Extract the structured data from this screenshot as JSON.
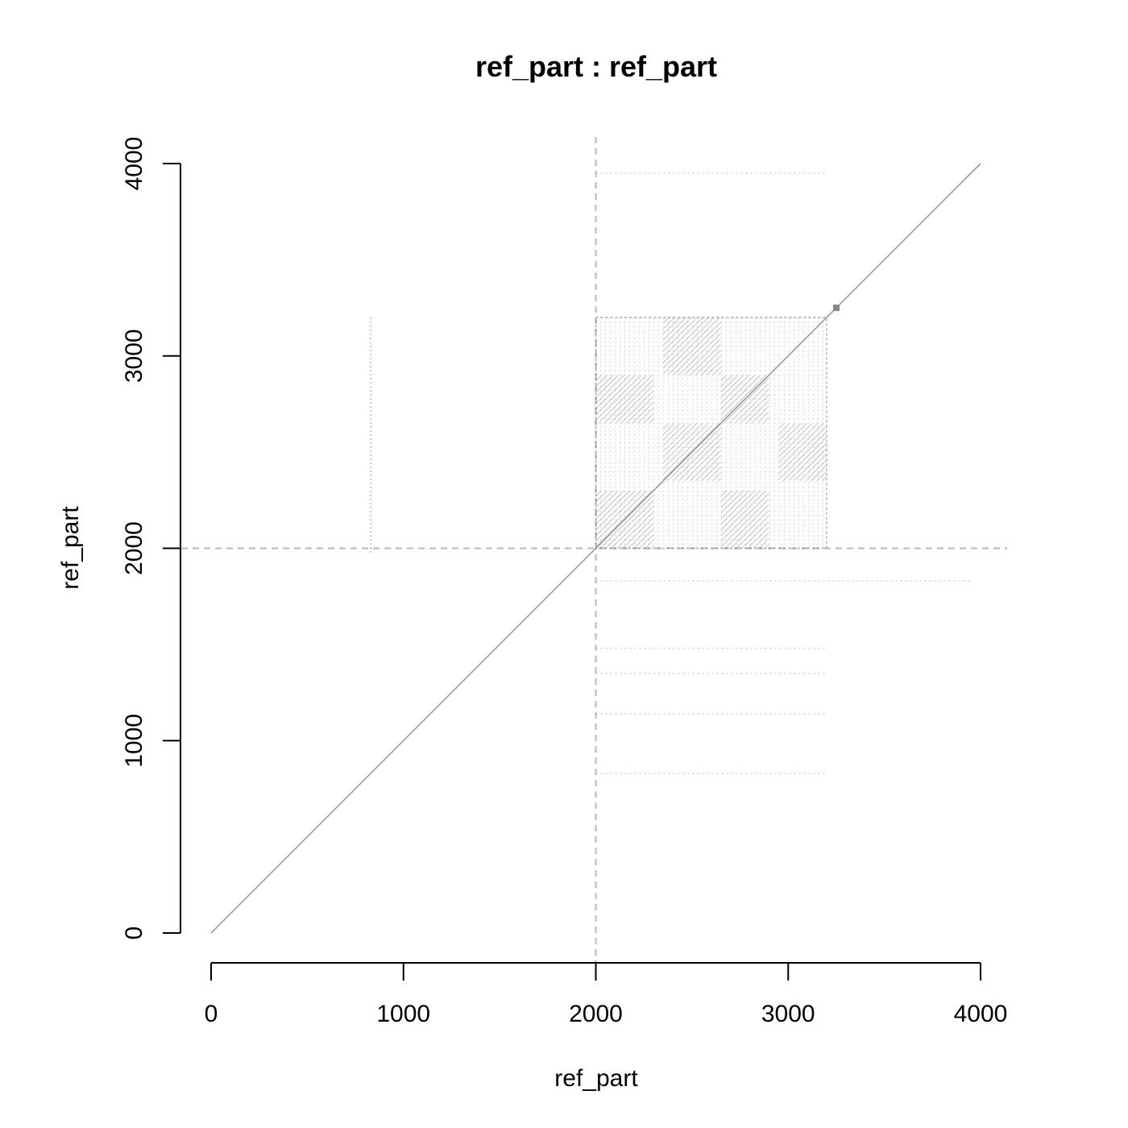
{
  "chart_data": {
    "type": "scatter",
    "title": "ref_part : ref_part",
    "xlabel": "ref_part",
    "ylabel": "ref_part",
    "xlim": [
      0,
      4000
    ],
    "ylim": [
      0,
      4000
    ],
    "x_ticks": [
      0,
      1000,
      2000,
      3000,
      4000
    ],
    "y_ticks": [
      0,
      1000,
      2000,
      3000,
      4000
    ],
    "x_tick_labels": [
      "0",
      "1000",
      "2000",
      "3000",
      "4000"
    ],
    "y_tick_labels": [
      "0",
      "1000",
      "2000",
      "3000",
      "4000"
    ],
    "grid": false,
    "legend": "none",
    "reference_lines": [
      {
        "axis": "x",
        "value": 2000,
        "style": "dashed"
      },
      {
        "axis": "y",
        "value": 2000,
        "style": "dashed"
      }
    ],
    "series": [
      {
        "kind": "diagonal",
        "x": [
          0,
          4000
        ],
        "y": [
          0,
          4000
        ]
      },
      {
        "kind": "repeat-block",
        "x_range": [
          2000,
          3200
        ],
        "y_range": [
          2000,
          3200
        ]
      }
    ],
    "highlight_points": [
      {
        "x": 3250,
        "y": 3250
      }
    ],
    "colors": {
      "dots": "#9a9a9a",
      "reference_line": "#b8b8b8",
      "axis": "#000000"
    }
  }
}
